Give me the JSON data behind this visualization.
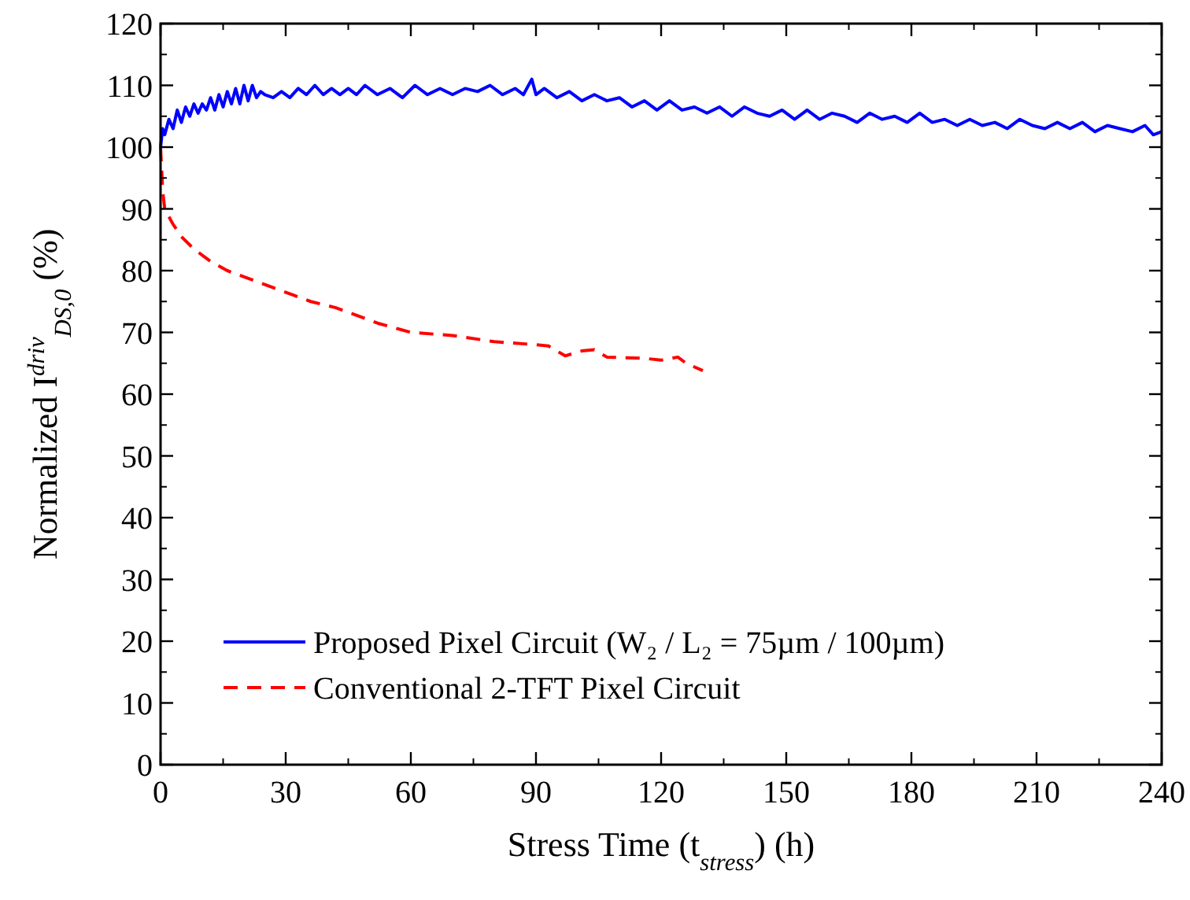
{
  "chart_data": {
    "type": "line",
    "xlabel": "Stress Time (t$_{stress}$) (h)",
    "ylabel": "Normalized I$^{driv}$$_{DS,0}$ (%)",
    "xlim": [
      0,
      240
    ],
    "ylim": [
      0,
      120
    ],
    "xticks": [
      0,
      30,
      60,
      90,
      120,
      150,
      180,
      210,
      240
    ],
    "yticks": [
      0,
      10,
      20,
      30,
      40,
      50,
      60,
      70,
      80,
      90,
      100,
      110,
      120
    ],
    "legend": "bottom left",
    "grid": false,
    "series": [
      {
        "name": "Proposed Pixel Circuit (W₂ / L₂ = 75µm / 100µm)",
        "color": "#0000ff",
        "line_style": "solid",
        "x": [
          0,
          0.5,
          1,
          2,
          3,
          4,
          5,
          6,
          7,
          8,
          9,
          10,
          11,
          12,
          13,
          14,
          15,
          16,
          17,
          18,
          19,
          20,
          21,
          22,
          23,
          24,
          25,
          27,
          29,
          31,
          33,
          35,
          37,
          39,
          41,
          43,
          45,
          47,
          49,
          52,
          55,
          58,
          61,
          64,
          67,
          70,
          73,
          76,
          79,
          82,
          85,
          87,
          89,
          90,
          92,
          95,
          98,
          101,
          104,
          107,
          110,
          113,
          116,
          119,
          122,
          125,
          128,
          131,
          134,
          137,
          140,
          143,
          146,
          149,
          152,
          155,
          158,
          161,
          164,
          167,
          170,
          173,
          176,
          179,
          182,
          185,
          188,
          191,
          194,
          197,
          200,
          203,
          206,
          209,
          212,
          215,
          218,
          221,
          224,
          227,
          230,
          233,
          236,
          238,
          240
        ],
        "values": [
          100,
          103,
          102,
          104.5,
          103,
          106,
          104,
          106.5,
          105,
          107,
          105.5,
          107,
          106,
          108,
          106,
          108.5,
          106.5,
          109,
          107,
          109.5,
          107,
          110,
          107.5,
          110,
          108,
          109,
          108.5,
          108,
          109,
          108,
          109.5,
          108.5,
          110,
          108.5,
          109.5,
          108.5,
          109.5,
          108.5,
          110,
          108.5,
          109.5,
          108,
          110,
          108.5,
          109.5,
          108.5,
          109.5,
          109,
          110,
          108.5,
          109.5,
          108.5,
          111,
          108.5,
          109.5,
          108,
          109,
          107.5,
          108.5,
          107.5,
          108,
          106.5,
          107.5,
          106,
          107.5,
          106,
          106.5,
          105.5,
          106.5,
          105,
          106.5,
          105.5,
          105,
          106,
          104.5,
          106,
          104.5,
          105.5,
          105,
          104,
          105.5,
          104.5,
          105,
          104,
          105.5,
          104,
          104.5,
          103.5,
          104.5,
          103.5,
          104,
          103,
          104.5,
          103.5,
          103,
          104,
          103,
          104,
          102.5,
          103.5,
          103,
          102.5,
          103.5,
          102,
          102.5
        ]
      },
      {
        "name": "Conventional 2-TFT Pixel Circuit",
        "color": "#ff0000",
        "line_style": "dashed",
        "x": [
          0,
          0.5,
          1,
          3,
          5,
          8,
          12,
          16,
          20,
          24,
          28,
          32,
          36,
          42,
          46,
          52,
          60,
          70,
          80,
          90,
          93,
          97,
          101,
          104,
          107,
          116,
          120,
          124,
          126,
          130
        ],
        "values": [
          100,
          93,
          90,
          87.5,
          85.5,
          83.5,
          81.5,
          80,
          79,
          78,
          77,
          76,
          75,
          74,
          73,
          71.5,
          70,
          69.5,
          68.5,
          68,
          67.8,
          66.2,
          67,
          67.2,
          66,
          65.8,
          65.5,
          66,
          65,
          63.8
        ]
      }
    ]
  }
}
